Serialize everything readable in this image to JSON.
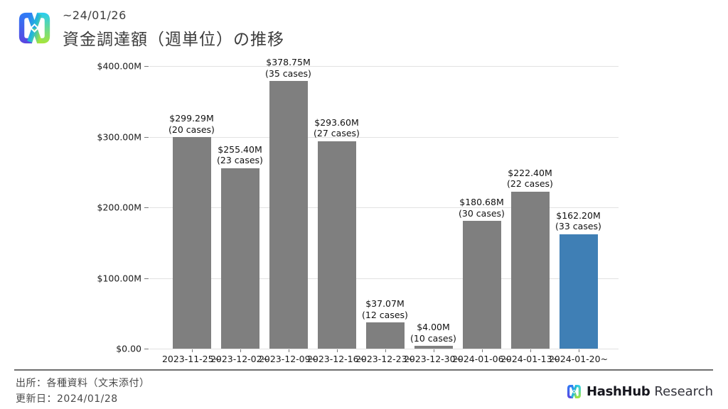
{
  "header": {
    "period": "~24/01/26",
    "title": "資金調達額（週単位）の推移"
  },
  "footer": {
    "source": "出所：各種資料（文末添付）",
    "updated": "更新日：2024/01/28",
    "brand": {
      "name_bold": "HashHub",
      "name_regular": "Research"
    }
  },
  "colors": {
    "bar_default": "#7f7f7f",
    "bar_highlight": "#3f7fb5",
    "grid": "#e2e2e2",
    "tick": "#7a7a7a",
    "text": "#1a1a1a"
  },
  "chart_data": {
    "type": "bar",
    "title": "資金調達額（週単位）の推移",
    "categories": [
      "2023-11-25~",
      "2023-12-02~",
      "2023-12-09~",
      "2023-12-16~",
      "2023-12-23~",
      "2023-12-30~",
      "2024-01-06~",
      "2024-01-13~",
      "2024-01-20~"
    ],
    "values": [
      299.29,
      255.4,
      378.75,
      293.6,
      37.07,
      4.0,
      180.68,
      222.4,
      162.2
    ],
    "cases": [
      20,
      23,
      35,
      27,
      12,
      10,
      30,
      22,
      33
    ],
    "value_labels": [
      "$299.29M",
      "$255.40M",
      "$378.75M",
      "$293.60M",
      "$37.07M",
      "$4.00M",
      "$180.68M",
      "$222.40M",
      "$162.20M"
    ],
    "cases_labels": [
      "(20 cases)",
      "(23 cases)",
      "(35 cases)",
      "(27 cases)",
      "(12 cases)",
      "(10 cases)",
      "(30 cases)",
      "(22 cases)",
      "(33 cases)"
    ],
    "ylim": [
      0,
      400
    ],
    "ytick_values": [
      0,
      100,
      200,
      300,
      400
    ],
    "ytick_labels": [
      "$0.00",
      "$100.00M",
      "$200.00M",
      "$300.00M",
      "$400.00M"
    ],
    "highlight_index": 8,
    "grid": true,
    "legend": false,
    "xlabel": "",
    "ylabel": ""
  }
}
